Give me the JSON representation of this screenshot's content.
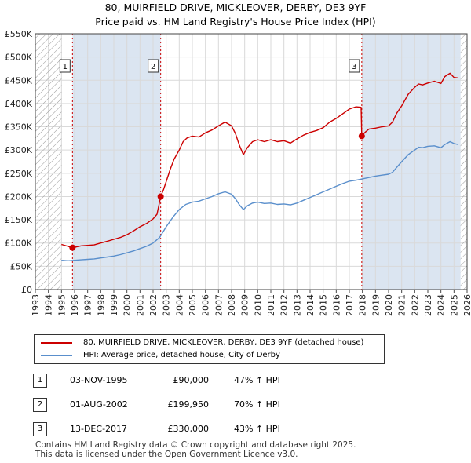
{
  "title": "80, MUIRFIELD DRIVE, MICKLEOVER, DERBY, DE3 9YF",
  "subtitle": "Price paid vs. HM Land Registry's House Price Index (HPI)",
  "colors": {
    "price": "#cc0000",
    "hpi": "#5a8fcc",
    "grid": "#d9d9d9",
    "band": "#dbe5f1",
    "hatch": "#9a9a9a"
  },
  "legend": {
    "price_label": "80, MUIRFIELD DRIVE, MICKLEOVER, DERBY, DE3 9YF (detached house)",
    "hpi_label": "HPI: Average price, detached house, City of Derby"
  },
  "transactions": [
    {
      "num": "1",
      "date": "03-NOV-1995",
      "price": "£90,000",
      "hpi": "47% ↑ HPI"
    },
    {
      "num": "2",
      "date": "01-AUG-2002",
      "price": "£199,950",
      "hpi": "70% ↑ HPI"
    },
    {
      "num": "3",
      "date": "13-DEC-2017",
      "price": "£330,000",
      "hpi": "43% ↑ HPI"
    }
  ],
  "footer": {
    "line1": "Contains HM Land Registry data © Crown copyright and database right 2025.",
    "line2": "This data is licensed under the Open Government Licence v3.0."
  },
  "chart_data": {
    "type": "line",
    "xlim": [
      1993,
      2026
    ],
    "ylim": [
      0,
      550000
    ],
    "x_ticks": [
      "1993",
      "1994",
      "1995",
      "1996",
      "1997",
      "1998",
      "1999",
      "2000",
      "2001",
      "2002",
      "2003",
      "2004",
      "2005",
      "2006",
      "2007",
      "2008",
      "2009",
      "2010",
      "2011",
      "2012",
      "2013",
      "2014",
      "2015",
      "2016",
      "2017",
      "2018",
      "2019",
      "2020",
      "2021",
      "2022",
      "2023",
      "2024",
      "2025",
      "2026"
    ],
    "y_ticks": [
      {
        "value": 0,
        "label": "£0"
      },
      {
        "value": 50000,
        "label": "£50K"
      },
      {
        "value": 100000,
        "label": "£100K"
      },
      {
        "value": 150000,
        "label": "£150K"
      },
      {
        "value": 200000,
        "label": "£200K"
      },
      {
        "value": 250000,
        "label": "£250K"
      },
      {
        "value": 300000,
        "label": "£300K"
      },
      {
        "value": 350000,
        "label": "£350K"
      },
      {
        "value": 400000,
        "label": "£400K"
      },
      {
        "value": 450000,
        "label": "£450K"
      },
      {
        "value": 500000,
        "label": "£500K"
      },
      {
        "value": 550000,
        "label": "£550K"
      }
    ],
    "no_data_before": 1995.0,
    "no_data_after": 2025.5,
    "shaded_periods": [
      [
        1995.84,
        2002.58
      ],
      [
        2017.95,
        2025.5
      ]
    ],
    "series": [
      {
        "name": "80, MUIRFIELD DRIVE, MICKLEOVER, DERBY, DE3 9YF (detached house)",
        "x": [
          1995.0,
          1995.5,
          1995.84,
          1996.5,
          1997,
          1997.5,
          1998,
          1998.5,
          1999,
          1999.5,
          2000,
          2000.5,
          2001,
          2001.5,
          2002,
          2002.3,
          2002.58,
          2002.8,
          2003,
          2003.3,
          2003.6,
          2004,
          2004.3,
          2004.6,
          2005,
          2005.5,
          2006,
          2006.5,
          2007,
          2007.5,
          2008,
          2008.3,
          2008.6,
          2008.9,
          2009.2,
          2009.6,
          2010,
          2010.5,
          2011,
          2011.5,
          2012,
          2012.5,
          2013,
          2013.5,
          2014,
          2014.5,
          2015,
          2015.5,
          2016,
          2016.5,
          2017,
          2017.5,
          2017.9,
          2017.95,
          2018.2,
          2018.5,
          2019,
          2019.5,
          2020,
          2020.3,
          2020.6,
          2021,
          2021.5,
          2022,
          2022.3,
          2022.6,
          2023,
          2023.5,
          2024,
          2024.3,
          2024.7,
          2025,
          2025.3
        ],
        "y": [
          97000,
          93000,
          90000,
          94000,
          95000,
          96000,
          100000,
          104000,
          108000,
          112000,
          118000,
          126000,
          135000,
          142000,
          152000,
          162000,
          199950,
          215000,
          232000,
          258000,
          280000,
          300000,
          318000,
          326000,
          330000,
          328000,
          337000,
          343000,
          352000,
          360000,
          352000,
          335000,
          310000,
          290000,
          305000,
          318000,
          322000,
          318000,
          322000,
          318000,
          320000,
          315000,
          324000,
          332000,
          338000,
          342000,
          348000,
          360000,
          368000,
          378000,
          388000,
          393000,
          392000,
          330000,
          338000,
          345000,
          347000,
          350000,
          352000,
          360000,
          378000,
          395000,
          420000,
          435000,
          442000,
          440000,
          444000,
          448000,
          443000,
          458000,
          465000,
          456000,
          455000
        ],
        "color": "#cc0000"
      },
      {
        "name": "HPI: Average price, detached house, City of Derby",
        "x": [
          1995.0,
          1995.5,
          1996,
          1996.5,
          1997,
          1997.5,
          1998,
          1998.5,
          1999,
          1999.5,
          2000,
          2000.5,
          2001,
          2001.5,
          2002,
          2002.5,
          2003,
          2003.5,
          2004,
          2004.5,
          2005,
          2005.5,
          2006,
          2006.5,
          2007,
          2007.5,
          2008,
          2008.3,
          2008.6,
          2008.9,
          2009.2,
          2009.6,
          2010,
          2010.5,
          2011,
          2011.5,
          2012,
          2012.5,
          2013,
          2013.5,
          2014,
          2014.5,
          2015,
          2015.5,
          2016,
          2016.5,
          2017,
          2017.5,
          2018,
          2018.5,
          2019,
          2019.5,
          2020,
          2020.3,
          2020.6,
          2021,
          2021.5,
          2022,
          2022.3,
          2022.6,
          2023,
          2023.5,
          2024,
          2024.3,
          2024.7,
          2025,
          2025.3
        ],
        "y": [
          63000,
          62000,
          63000,
          64000,
          65000,
          66000,
          68000,
          70000,
          72000,
          75000,
          79000,
          83000,
          88000,
          93000,
          100000,
          112000,
          135000,
          155000,
          172000,
          183000,
          188000,
          190000,
          195000,
          200000,
          206000,
          210000,
          205000,
          195000,
          182000,
          172000,
          180000,
          186000,
          188000,
          185000,
          186000,
          183000,
          184000,
          182000,
          186000,
          192000,
          198000,
          204000,
          210000,
          216000,
          222000,
          228000,
          233000,
          235000,
          238000,
          241000,
          244000,
          246000,
          248000,
          252000,
          262000,
          275000,
          290000,
          300000,
          306000,
          305000,
          308000,
          309000,
          305000,
          312000,
          318000,
          314000,
          312000
        ],
        "color": "#5a8fcc"
      }
    ],
    "sales": [
      {
        "label": "1",
        "x": 1995.84,
        "y": 90000
      },
      {
        "label": "2",
        "x": 2002.58,
        "y": 199950
      },
      {
        "label": "3",
        "x": 2017.95,
        "y": 330000
      }
    ]
  }
}
